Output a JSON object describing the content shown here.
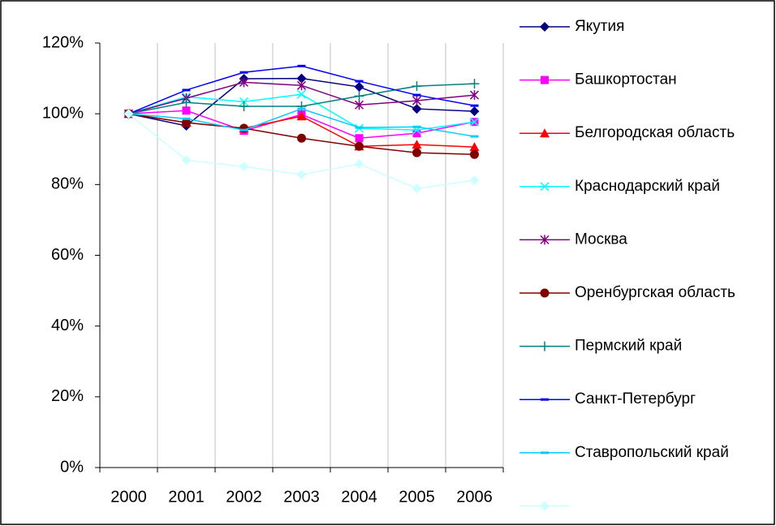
{
  "chart_data": {
    "type": "line",
    "categories": [
      "2000",
      "2001",
      "2002",
      "2003",
      "2004",
      "2005",
      "2006"
    ],
    "ylim": [
      0,
      120
    ],
    "yticks": [
      {
        "value": 0,
        "label": "0%"
      },
      {
        "value": 20,
        "label": "20%"
      },
      {
        "value": 40,
        "label": "40%"
      },
      {
        "value": 60,
        "label": "60%"
      },
      {
        "value": 80,
        "label": "80%"
      },
      {
        "value": 100,
        "label": "100%"
      },
      {
        "value": 120,
        "label": "120%"
      }
    ],
    "grid": "x",
    "series": [
      {
        "name": "Якутия",
        "color": "#000080",
        "marker": "diamond",
        "values": [
          100,
          96.6,
          109.9,
          110,
          107.6,
          101.4,
          100.7
        ]
      },
      {
        "name": "Башкортостан",
        "color": "#ff00ff",
        "marker": "square",
        "values": [
          100,
          100.9,
          95.2,
          99.8,
          93.1,
          94.5,
          97.7
        ]
      },
      {
        "name": "Белгородская область",
        "color": "#ff0000",
        "marker": "triangle",
        "values": [
          100,
          97.5,
          95.9,
          99.3,
          90.8,
          91.3,
          90.6
        ]
      },
      {
        "name": "Краснодарский край",
        "color": "#00ffff",
        "marker": "x",
        "values": [
          100,
          104.8,
          103.4,
          105.5,
          95.9,
          95.4,
          97.7
        ]
      },
      {
        "name": "Москва",
        "color": "#800080",
        "marker": "star",
        "values": [
          100,
          104.4,
          108.9,
          108,
          102.5,
          103.7,
          105.3
        ]
      },
      {
        "name": "Оренбургская область",
        "color": "#800000",
        "marker": "circle",
        "values": [
          100,
          97.5,
          95.9,
          93.1,
          90.8,
          89,
          88.5
        ]
      },
      {
        "name": "Пермский край",
        "color": "#008080",
        "marker": "plus",
        "values": [
          100,
          103.2,
          102.1,
          102.1,
          105,
          107.8,
          108.5
        ]
      },
      {
        "name": "Санкт-Петербург",
        "color": "#0000ff",
        "marker": "dash",
        "values": [
          100,
          106.7,
          111.7,
          113.5,
          109.2,
          105.3,
          102.3
        ]
      },
      {
        "name": "Ставропольский край",
        "color": "#00ccff",
        "marker": "dash",
        "values": [
          100,
          98.6,
          95.4,
          101.4,
          96.1,
          96.3,
          93.6
        ]
      },
      {
        "name": null,
        "color": "#ccffff",
        "marker": "diamond",
        "values": [
          100,
          86.9,
          85.1,
          82.8,
          85.8,
          78.9,
          81.2
        ]
      }
    ]
  }
}
